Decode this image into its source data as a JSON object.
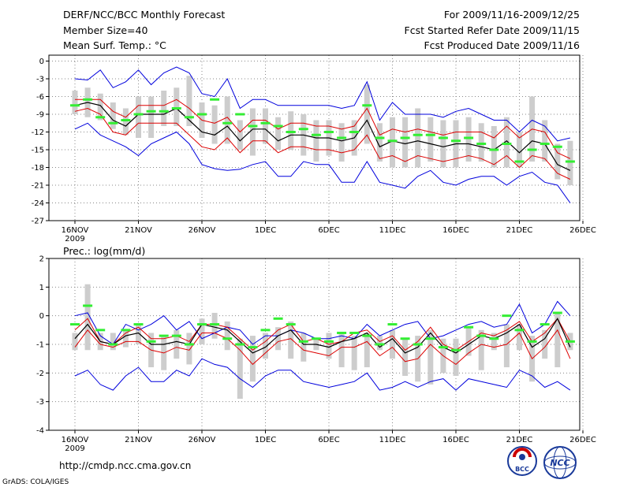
{
  "header": {
    "title": "DERF/NCC/BCC Monthly Forecast",
    "member_size": "Member Size=40",
    "variable": "Mean Surf. Temp.: °C",
    "period": "For 2009/11/16-2009/12/25",
    "started": "Fcst Started Refer Date 2009/11/15",
    "produced": "Fcst Produced Date 2009/11/16"
  },
  "footer": {
    "url": "http://cmdp.ncc.cma.gov.cn",
    "grads": "GrADS: COLA/IGES",
    "logo_bcc": "BCC",
    "logo_ncc": "NCC"
  },
  "colors": {
    "green": "#33ee33",
    "grey": "#cdcdcd",
    "blue": "#0000dd",
    "red": "#dd0000",
    "black": "#000000"
  },
  "chart_data": [
    {
      "type": "line",
      "name": "temperature",
      "title": "Mean Surf. Temp.: °C",
      "ylim": [
        -27,
        1
      ],
      "yticks": [
        0,
        -3,
        -6,
        -9,
        -12,
        -15,
        -18,
        -21,
        -24,
        -27
      ],
      "x_tick_labels": [
        "16NOV",
        "21NOV",
        "26NOV",
        "1DEC",
        "6DEC",
        "11DEC",
        "16DEC",
        "21DEC",
        "26DEC"
      ],
      "year_label": "2009",
      "days": 40,
      "series": [
        {
          "name": "max",
          "color": "blue",
          "values": [
            -3,
            -3.2,
            -1.5,
            -4.5,
            -3.5,
            -1.5,
            -4,
            -2,
            -1,
            -2,
            -5.5,
            -6,
            -3,
            -8,
            -6.5,
            -6.5,
            -7.5,
            -7.5,
            -7.5,
            -7.5,
            -7.5,
            -8,
            -7.5,
            -3.5,
            -10,
            -7,
            -9,
            -9,
            -9,
            -9.5,
            -8.5,
            -8,
            -9,
            -10,
            -10,
            -12,
            -10,
            -11,
            -13.5,
            -13
          ]
        },
        {
          "name": "upper",
          "color": "red",
          "values": [
            -6.5,
            -6.5,
            -6.5,
            -8.5,
            -9.5,
            -7.5,
            -7.5,
            -7.5,
            -6.5,
            -8,
            -10,
            -10.5,
            -9.5,
            -12,
            -10,
            -10,
            -11.5,
            -10.5,
            -10.5,
            -11,
            -11,
            -11.5,
            -11,
            -8,
            -12.5,
            -11.5,
            -12,
            -11.5,
            -12,
            -12.5,
            -12,
            -12,
            -12,
            -13,
            -11,
            -13,
            -11.5,
            -12,
            -15.5,
            -16.5
          ]
        },
        {
          "name": "mean",
          "color": "black",
          "values": [
            -7.5,
            -7,
            -7.5,
            -10,
            -11,
            -9,
            -9,
            -9,
            -8,
            -10,
            -12,
            -12.5,
            -11,
            -13.5,
            -11.5,
            -11.5,
            -13.5,
            -12.5,
            -12.5,
            -13,
            -13,
            -13.5,
            -13,
            -10,
            -14.5,
            -13.5,
            -14,
            -13.5,
            -14,
            -14.5,
            -14,
            -14,
            -14.5,
            -15,
            -13.5,
            -15.5,
            -13.5,
            -14,
            -17.5,
            -18.5
          ]
        },
        {
          "name": "lower",
          "color": "red",
          "values": [
            -8.5,
            -8,
            -9,
            -12,
            -12.5,
            -10.5,
            -10.5,
            -10.5,
            -10.5,
            -12.5,
            -14.5,
            -15,
            -13,
            -15.5,
            -13.5,
            -13.5,
            -15.5,
            -14.5,
            -14.5,
            -15,
            -15,
            -15.5,
            -15,
            -12.5,
            -16.5,
            -16,
            -17,
            -16,
            -16.5,
            -17,
            -16.5,
            -16,
            -16.5,
            -17.5,
            -16,
            -18,
            -16,
            -16.5,
            -19,
            -20
          ]
        },
        {
          "name": "min",
          "color": "blue",
          "values": [
            -11.5,
            -10.5,
            -12.5,
            -13.5,
            -14.5,
            -16,
            -14,
            -13,
            -12,
            -14,
            -17.5,
            -18.2,
            -18.5,
            -18.3,
            -17.5,
            -17,
            -19.5,
            -19.5,
            -17,
            -17.5,
            -17.5,
            -20.5,
            -20.5,
            -17,
            -20.5,
            -21,
            -21.5,
            -19.5,
            -18.5,
            -20.5,
            -21,
            -20,
            -19.5,
            -19.5,
            -21,
            -19.5,
            -18.8,
            -20.5,
            -21,
            -24
          ]
        }
      ],
      "box_low": [
        -9,
        -9.5,
        -10,
        -11.5,
        -12.5,
        -13,
        -13,
        -11,
        -11,
        -11,
        -13,
        -14,
        -14,
        -15,
        -16,
        -14,
        -15,
        -15,
        -16,
        -17,
        -16,
        -17,
        -16,
        -14,
        -17,
        -18,
        -18,
        -18,
        -17,
        -18,
        -18,
        -17,
        -17,
        -18,
        -18,
        -18,
        -17,
        -17,
        -20,
        -21
      ],
      "box_high": [
        -5,
        -4.5,
        -5.5,
        -7,
        -8,
        -6,
        -6,
        -5,
        -4.5,
        -2.5,
        -7,
        -7.5,
        -6,
        -10,
        -8,
        -8,
        -9.5,
        -8.5,
        -9,
        -10,
        -10,
        -10.5,
        -10,
        -4,
        -10.5,
        -9.5,
        -9.5,
        -8,
        -9.5,
        -10,
        -10,
        -9.5,
        -10.5,
        -11,
        -9.5,
        -12,
        -6,
        -10,
        -14,
        -13.5
      ],
      "green_marks": [
        -7.5,
        -6.5,
        -9.5,
        -10.5,
        -10,
        -9,
        -8.5,
        -8.5,
        -8,
        -9.5,
        -9,
        -6.5,
        -10.5,
        -9,
        -11,
        -10.5,
        -11,
        -12,
        -11.5,
        -12.5,
        -12,
        -13,
        -12,
        -7.5,
        -13,
        -13.5,
        -13,
        -12.5,
        -12.5,
        -13,
        -13.5,
        -13,
        -14,
        -15,
        -14,
        -17,
        -15,
        -14,
        -14.5,
        -17
      ]
    },
    {
      "type": "line",
      "name": "precipitation",
      "title": "Prec.: log(mm/d)",
      "ylim": [
        -4,
        2
      ],
      "yticks": [
        2,
        1,
        0,
        -1,
        -2,
        -3,
        -4
      ],
      "x_tick_labels": [
        "16NOV",
        "21NOV",
        "26NOV",
        "1DEC",
        "6DEC",
        "11DEC",
        "16DEC",
        "21DEC",
        "26DEC"
      ],
      "year_label": "2009",
      "days": 40,
      "series": [
        {
          "name": "max",
          "color": "blue",
          "values": [
            0,
            0.1,
            -0.7,
            -1.0,
            -0.3,
            -0.5,
            -0.3,
            0,
            -0.5,
            -0.2,
            -0.8,
            -0.6,
            -0.4,
            -0.5,
            -1.0,
            -0.7,
            -0.7,
            -0.5,
            -0.6,
            -0.8,
            -0.8,
            -0.7,
            -0.8,
            -0.3,
            -0.7,
            -0.5,
            -0.3,
            -0.2,
            -0.8,
            -0.7,
            -0.5,
            -0.3,
            -0.2,
            -0.4,
            -0.3,
            0.4,
            -0.6,
            -0.3,
            0.5,
            0
          ]
        },
        {
          "name": "upper",
          "color": "red",
          "values": [
            -0.5,
            -0.1,
            -0.9,
            -1.0,
            -0.6,
            -0.4,
            -0.8,
            -0.8,
            -0.7,
            -0.9,
            -0.3,
            -0.3,
            -0.4,
            -0.8,
            -1.2,
            -0.9,
            -0.5,
            -0.3,
            -0.9,
            -0.8,
            -1.0,
            -0.9,
            -0.6,
            -0.5,
            -0.9,
            -0.7,
            -1.2,
            -0.9,
            -0.4,
            -1.0,
            -1.2,
            -0.9,
            -0.6,
            -0.7,
            -0.5,
            -0.2,
            -0.9,
            -0.6,
            -0.1,
            -0.9
          ]
        },
        {
          "name": "mean",
          "color": "black",
          "values": [
            -0.8,
            -0.3,
            -0.9,
            -1.0,
            -0.7,
            -0.6,
            -1.0,
            -1.0,
            -0.9,
            -1.0,
            -0.3,
            -0.4,
            -0.5,
            -0.9,
            -1.3,
            -1.1,
            -0.7,
            -0.5,
            -1.0,
            -1.0,
            -1.1,
            -0.9,
            -0.8,
            -0.6,
            -1.1,
            -0.8,
            -1.3,
            -1.1,
            -0.6,
            -1.1,
            -1.3,
            -1.0,
            -0.7,
            -0.8,
            -0.6,
            -0.3,
            -1.1,
            -0.8,
            -0.1,
            -1.1
          ]
        },
        {
          "name": "lower",
          "color": "red",
          "values": [
            -1.1,
            -0.5,
            -1.0,
            -1.1,
            -0.9,
            -0.9,
            -1.2,
            -1.3,
            -1.1,
            -1.2,
            -0.6,
            -0.6,
            -0.8,
            -1.2,
            -1.7,
            -1.3,
            -0.9,
            -0.8,
            -1.2,
            -1.3,
            -1.4,
            -1.1,
            -1.1,
            -0.9,
            -1.4,
            -1.1,
            -1.6,
            -1.5,
            -1.0,
            -1.4,
            -1.7,
            -1.3,
            -1.0,
            -1.1,
            -1.0,
            -0.6,
            -1.5,
            -1.1,
            -0.5,
            -1.5
          ]
        },
        {
          "name": "min",
          "color": "blue",
          "values": [
            -2.1,
            -1.9,
            -2.4,
            -2.6,
            -2.1,
            -1.8,
            -2.3,
            -2.3,
            -1.9,
            -2.1,
            -1.5,
            -1.7,
            -1.8,
            -2.2,
            -2.5,
            -2.1,
            -1.9,
            -1.9,
            -2.3,
            -2.4,
            -2.5,
            -2.4,
            -2.3,
            -2.0,
            -2.6,
            -2.5,
            -2.3,
            -2.5,
            -2.3,
            -2.2,
            -2.6,
            -2.2,
            -2.3,
            -2.4,
            -2.5,
            -1.9,
            -2.1,
            -2.5,
            -2.3,
            -2.6
          ]
        },
        {
          "name": "green",
          "color": "green",
          "values": [
            -0.3,
            0.35,
            -0.5,
            -1.0,
            -0.5,
            -0.3,
            -0.9,
            -0.7,
            -0.7,
            -1.0,
            -0.3,
            -0.3,
            -0.8,
            -1.0,
            -1.1,
            -0.5,
            -0.1,
            -0.3,
            -0.9,
            -0.8,
            -0.9,
            -0.6,
            -0.6,
            -0.7,
            -1.0,
            -0.3,
            -0.8,
            -1.0,
            -0.8,
            -1.1,
            -1.2,
            -0.4,
            -0.7,
            -0.8,
            0.0,
            -0.5,
            -0.9,
            -0.3,
            0.1,
            -0.9
          ]
        }
      ],
      "box_low": [
        -1.2,
        -1.2,
        -1.2,
        -1.2,
        -1.1,
        -1.0,
        -1.8,
        -1.9,
        -1.5,
        -1.7,
        -1.0,
        -0.8,
        -1.2,
        -2.9,
        -2.3,
        -1.5,
        -1.2,
        -1.5,
        -1.6,
        -1.2,
        -1.5,
        -1.8,
        -1.9,
        -1.8,
        -1.2,
        -1.5,
        -2.1,
        -2.3,
        -2.4,
        -2.0,
        -2.1,
        -1.4,
        -1.9,
        -1.2,
        -1.8,
        -1.2,
        -2.3,
        -1.5,
        -1.8,
        -1.2
      ],
      "box_high": [
        -0.6,
        1.1,
        -0.6,
        -0.6,
        -0.5,
        -0.3,
        -0.6,
        -0.7,
        -0.5,
        -0.6,
        -0.1,
        0.1,
        -0.2,
        -0.8,
        -0.7,
        -0.6,
        -0.4,
        -0.2,
        -0.6,
        -0.8,
        -0.6,
        -0.6,
        -0.7,
        -0.6,
        -0.7,
        -0.5,
        -0.8,
        -0.7,
        -0.5,
        -0.8,
        -0.8,
        -0.4,
        -0.5,
        -0.6,
        -0.3,
        -0.3,
        -0.7,
        -0.5,
        0.1,
        -0.6
      ]
    }
  ]
}
